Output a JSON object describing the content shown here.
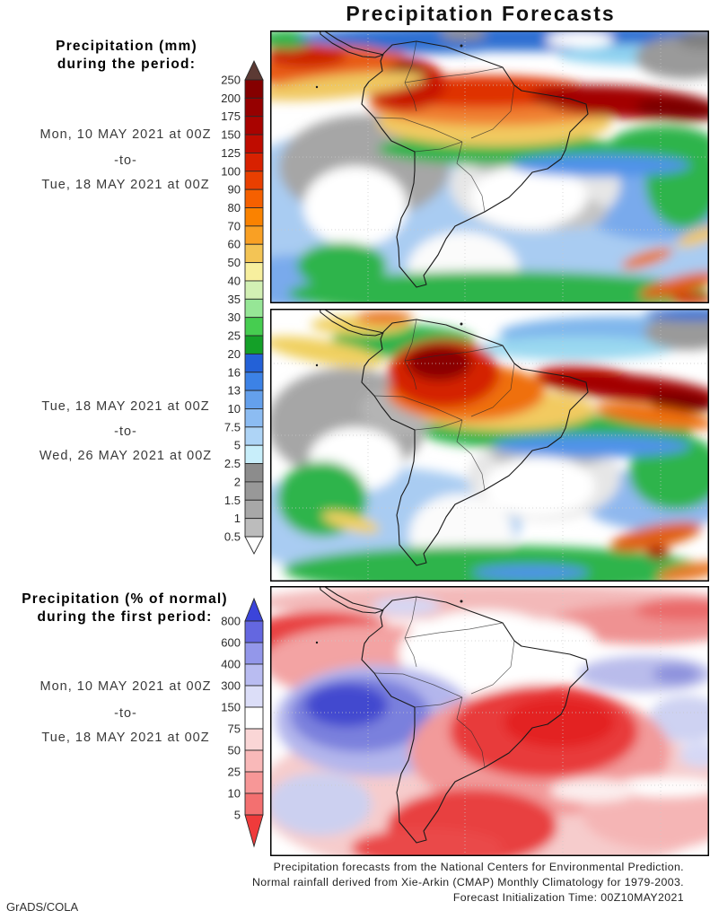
{
  "title": "Precipitation Forecasts",
  "credit": "GrADS/COLA",
  "footer": {
    "line1": "Precipitation forecasts from the National Centers for Environmental Prediction.",
    "line2": "Normal rainfall derived from Xie-Arkin (CMAP) Monthly Climatology for 1979-2003.",
    "line3": "Forecast Initialization Time: 00Z10MAY2021"
  },
  "section_mm": {
    "heading_line1": "Precipitation (mm)",
    "heading_line2": "during the period:",
    "period1": {
      "start": "Mon, 10 MAY 2021 at 00Z",
      "sep": "-to-",
      "end": "Tue, 18 MAY 2021 at 00Z"
    },
    "period2": {
      "start": "Tue, 18 MAY 2021 at 00Z",
      "sep": "-to-",
      "end": "Wed, 26 MAY 2021 at 00Z"
    }
  },
  "section_pct": {
    "heading_line1": "Precipitation (% of normal)",
    "heading_line2": "during the first period:",
    "period": {
      "start": "Mon, 10 MAY 2021 at 00Z",
      "sep": "-to-",
      "end": "Tue, 18 MAY 2021 at 00Z"
    }
  },
  "colorbar_mm": {
    "labels": [
      "250",
      "200",
      "175",
      "150",
      "125",
      "100",
      "90",
      "80",
      "70",
      "60",
      "50",
      "40",
      "35",
      "30",
      "25",
      "20",
      "16",
      "13",
      "10",
      "7.5",
      "5",
      "2.5",
      "2",
      "1.5",
      "1",
      "0.5"
    ],
    "segment_colors": [
      "#850000",
      "#960000",
      "#a90300",
      "#bf0c00",
      "#d82100",
      "#e93f00",
      "#f56000",
      "#fa8200",
      "#f9a024",
      "#f3c455",
      "#f7ef9e",
      "#d2f0b4",
      "#96e696",
      "#46cd50",
      "#14a028",
      "#2361d7",
      "#3c82e6",
      "#64a0ec",
      "#8cbcf2",
      "#aed4f6",
      "#c8eefa",
      "#8c8c8c",
      "#989898",
      "#a8a8a8",
      "#bcbcbc"
    ],
    "arrow_top_color": "#5c3a34",
    "arrow_bottom_color": "#ffffff",
    "border_color": "#2a2a2a"
  },
  "colorbar_pct": {
    "labels": [
      "800",
      "600",
      "400",
      "300",
      "150",
      "75",
      "50",
      "25",
      "10",
      "5"
    ],
    "segment_colors": [
      "#6467e0",
      "#9397ea",
      "#b9bcf1",
      "#dcdef8",
      "#ffffff",
      "#fad6d6",
      "#f9b9b9",
      "#f79797",
      "#f37070"
    ],
    "arrow_top_color": "#3b44da",
    "arrow_bottom_color": "#ef3b3b",
    "border_color": "#2a2a2a"
  },
  "chart_data": [
    {
      "type": "heatmap",
      "title": "Precipitation (mm)",
      "period": "Mon, 10 MAY 2021 at 00Z to Tue, 18 MAY 2021 at 00Z",
      "region": "South America",
      "units": "mm",
      "levels": [
        0.5,
        1,
        1.5,
        2,
        2.5,
        5,
        7.5,
        10,
        13,
        16,
        20,
        25,
        30,
        35,
        40,
        50,
        60,
        70,
        80,
        90,
        100,
        125,
        150,
        175,
        200,
        250
      ],
      "legend_position": "left"
    },
    {
      "type": "heatmap",
      "title": "Precipitation (mm)",
      "period": "Tue, 18 MAY 2021 at 00Z to Wed, 26 MAY 2021 at 00Z",
      "region": "South America",
      "units": "mm",
      "levels": [
        0.5,
        1,
        1.5,
        2,
        2.5,
        5,
        7.5,
        10,
        13,
        16,
        20,
        25,
        30,
        35,
        40,
        50,
        60,
        70,
        80,
        90,
        100,
        125,
        150,
        175,
        200,
        250
      ],
      "legend_position": "left"
    },
    {
      "type": "heatmap",
      "title": "Precipitation (% of normal)",
      "period": "Mon, 10 MAY 2021 at 00Z to Tue, 18 MAY 2021 at 00Z",
      "region": "South America",
      "units": "% of normal",
      "levels": [
        5,
        10,
        25,
        50,
        75,
        150,
        300,
        400,
        600,
        800
      ],
      "legend_position": "left"
    }
  ]
}
